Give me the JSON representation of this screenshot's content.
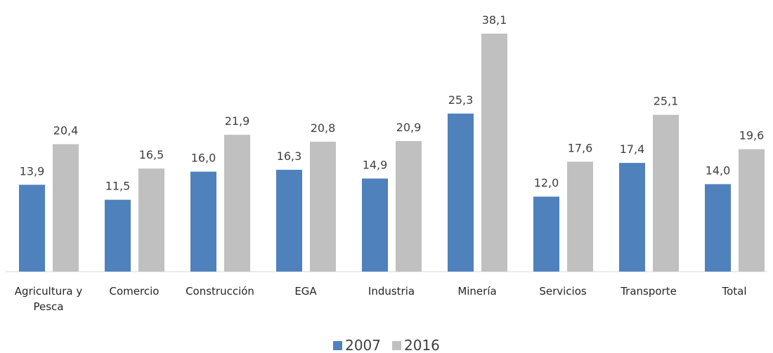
{
  "chart_data": {
    "type": "bar",
    "categories": [
      "Agricultura y Pesca",
      "Comercio",
      "Construcción",
      "EGA",
      "Industria",
      "Minería",
      "Servicios",
      "Transporte",
      "Total"
    ],
    "series": [
      {
        "name": "2007",
        "color": "#4f81bd",
        "values": [
          13.9,
          11.5,
          16.0,
          16.3,
          14.9,
          25.3,
          12.0,
          17.4,
          14.0
        ],
        "value_labels": [
          "13,9",
          "11,5",
          "16,0",
          "16,3",
          "14,9",
          "25,3",
          "12,0",
          "17,4",
          "14,0"
        ]
      },
      {
        "name": "2016",
        "color": "#c0c0c0",
        "values": [
          20.4,
          16.5,
          21.9,
          20.8,
          20.9,
          38.1,
          17.6,
          25.1,
          19.6
        ],
        "value_labels": [
          "20,4",
          "16,5",
          "21,9",
          "20,8",
          "20,9",
          "38,1",
          "17,6",
          "25,1",
          "19,6"
        ]
      }
    ],
    "ylim": [
      0,
      40
    ],
    "legend": "bottom"
  }
}
